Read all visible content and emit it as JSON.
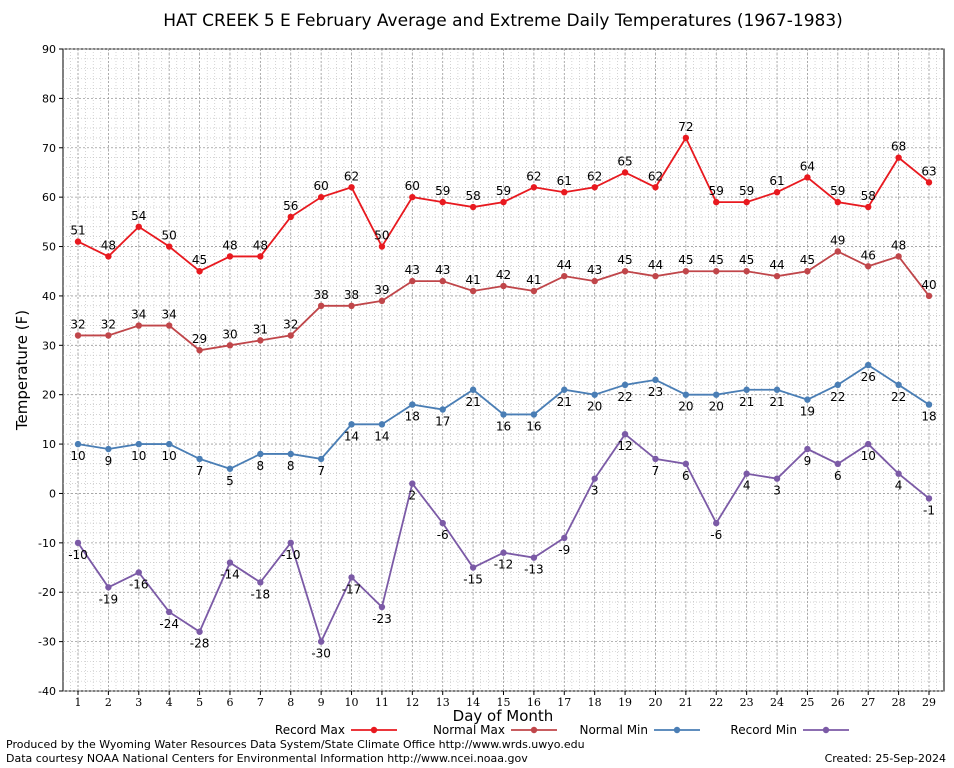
{
  "footer": {
    "credit_line1": "Produced by the Wyoming Water Resources Data System/State Climate Office http://www.wrds.uwyo.edu",
    "credit_line2": "Data courtesy NOAA National Centers for Environmental Information http://www.ncei.noaa.gov",
    "created": "Created:  25-Sep-2024"
  },
  "chart_data": {
    "type": "line",
    "title": "HAT CREEK 5 E February Average and Extreme Daily Temperatures (1967-1983)",
    "xlabel": "Day of Month",
    "ylabel": "Temperature (F)",
    "ylim": [
      -40,
      90
    ],
    "yticks": [
      -40,
      -30,
      -20,
      -10,
      0,
      10,
      20,
      30,
      40,
      50,
      60,
      70,
      80,
      90
    ],
    "grid": true,
    "legend_position": "bottom",
    "x": [
      1,
      2,
      3,
      4,
      5,
      6,
      7,
      8,
      9,
      10,
      11,
      12,
      13,
      14,
      15,
      16,
      17,
      18,
      19,
      20,
      21,
      22,
      23,
      24,
      25,
      26,
      27,
      28,
      29
    ],
    "series": [
      {
        "name": "Record Max",
        "color": "#e8191f",
        "label_pos": "above",
        "values": [
          51,
          48,
          54,
          50,
          45,
          48,
          48,
          56,
          60,
          62,
          50,
          60,
          59,
          58,
          59,
          62,
          61,
          62,
          65,
          62,
          72,
          59,
          59,
          61,
          64,
          59,
          58,
          68,
          63
        ]
      },
      {
        "name": "Normal Max",
        "color": "#c0464a",
        "label_pos": "above",
        "values": [
          32,
          32,
          34,
          34,
          29,
          30,
          31,
          32,
          38,
          38,
          39,
          43,
          43,
          41,
          42,
          41,
          44,
          43,
          45,
          44,
          45,
          45,
          45,
          44,
          45,
          49,
          46,
          48,
          40
        ]
      },
      {
        "name": "Normal Min",
        "color": "#4a7eb5",
        "label_pos": "below",
        "values": [
          10,
          9,
          10,
          10,
          7,
          5,
          8,
          8,
          7,
          14,
          14,
          18,
          17,
          21,
          16,
          16,
          21,
          20,
          22,
          23,
          20,
          20,
          21,
          21,
          19,
          22,
          26,
          22,
          18
        ]
      },
      {
        "name": "Record Min",
        "color": "#7b5aa6",
        "label_pos": "below",
        "values": [
          -10,
          -19,
          -16,
          -24,
          -28,
          -14,
          -18,
          -10,
          -30,
          -17,
          -23,
          2,
          -6,
          -15,
          -12,
          -13,
          -9,
          3,
          12,
          7,
          6,
          -6,
          4,
          3,
          9,
          6,
          10,
          4,
          -1
        ]
      }
    ]
  }
}
